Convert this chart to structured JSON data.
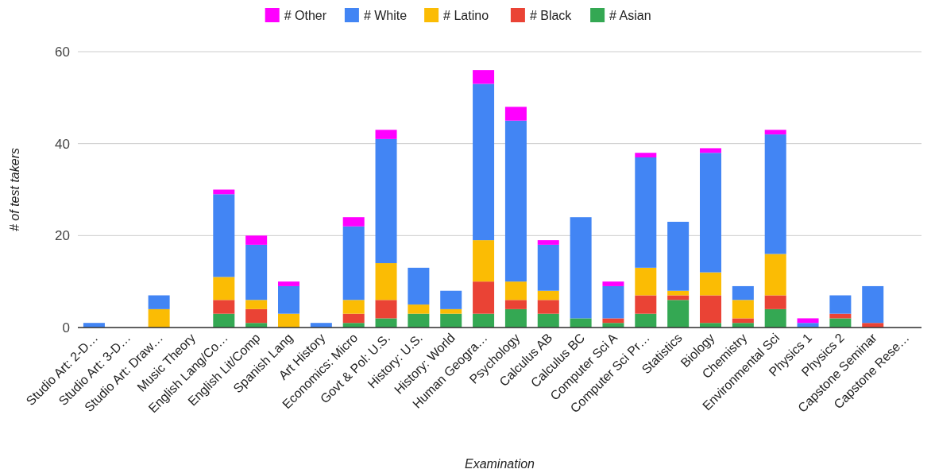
{
  "chart_data": {
    "type": "bar",
    "stacked": true,
    "xlabel": "Examination",
    "ylabel": "# of test takers",
    "categories": [
      "Studio Art: 2-D…",
      "Studio Art: 3-D…",
      "Studio Art: Draw…",
      "Music Theory",
      "English Lang/Co…",
      "English Lit/Comp",
      "Spanish Lang",
      "Art History",
      "Economics: Micro",
      "Govt & Pol: U.S.",
      "History: U.S.",
      "History: World",
      "Human Geogra…",
      "Psychology",
      "Calculus AB",
      "Calculus BC",
      "Computer Sci A",
      "Computer Sci Pr…",
      "Statistics",
      "Biology",
      "Chemistry",
      "Environmental Sci",
      "Physics 1",
      "Physics 2",
      "Capstone Seminar",
      "Capstone Rese…"
    ],
    "series": [
      {
        "name": "# Asian",
        "color": "#34a853",
        "values": [
          0,
          0,
          0,
          0,
          3,
          1,
          0,
          0,
          1,
          2,
          3,
          3,
          3,
          4,
          3,
          2,
          1,
          3,
          6,
          1,
          1,
          4,
          0,
          2,
          0,
          0
        ]
      },
      {
        "name": "# Black",
        "color": "#ea4335",
        "values": [
          0,
          0,
          0,
          0,
          3,
          3,
          0,
          0,
          2,
          4,
          0,
          0,
          7,
          2,
          3,
          0,
          1,
          4,
          1,
          6,
          1,
          3,
          0,
          1,
          1,
          0
        ]
      },
      {
        "name": "# Latino",
        "color": "#fbbc04",
        "values": [
          0,
          0,
          4,
          0,
          5,
          2,
          3,
          0,
          3,
          8,
          2,
          1,
          9,
          4,
          2,
          0,
          0,
          6,
          1,
          5,
          4,
          9,
          0,
          0,
          0,
          0
        ]
      },
      {
        "name": "# White",
        "color": "#4285f4",
        "values": [
          1,
          0,
          3,
          0,
          18,
          12,
          6,
          1,
          16,
          27,
          8,
          4,
          34,
          35,
          10,
          22,
          7,
          24,
          15,
          26,
          3,
          26,
          1,
          4,
          8,
          0
        ]
      },
      {
        "name": "# Other",
        "color": "#ff00ff",
        "values": [
          0,
          0,
          0,
          0,
          1,
          2,
          1,
          0,
          2,
          2,
          0,
          0,
          3,
          3,
          1,
          0,
          1,
          1,
          0,
          1,
          0,
          1,
          1,
          0,
          0,
          0
        ]
      }
    ],
    "ylim": [
      0,
      60
    ],
    "yticks": [
      0,
      20,
      40,
      60
    ],
    "grid": "y",
    "legend": "top"
  }
}
